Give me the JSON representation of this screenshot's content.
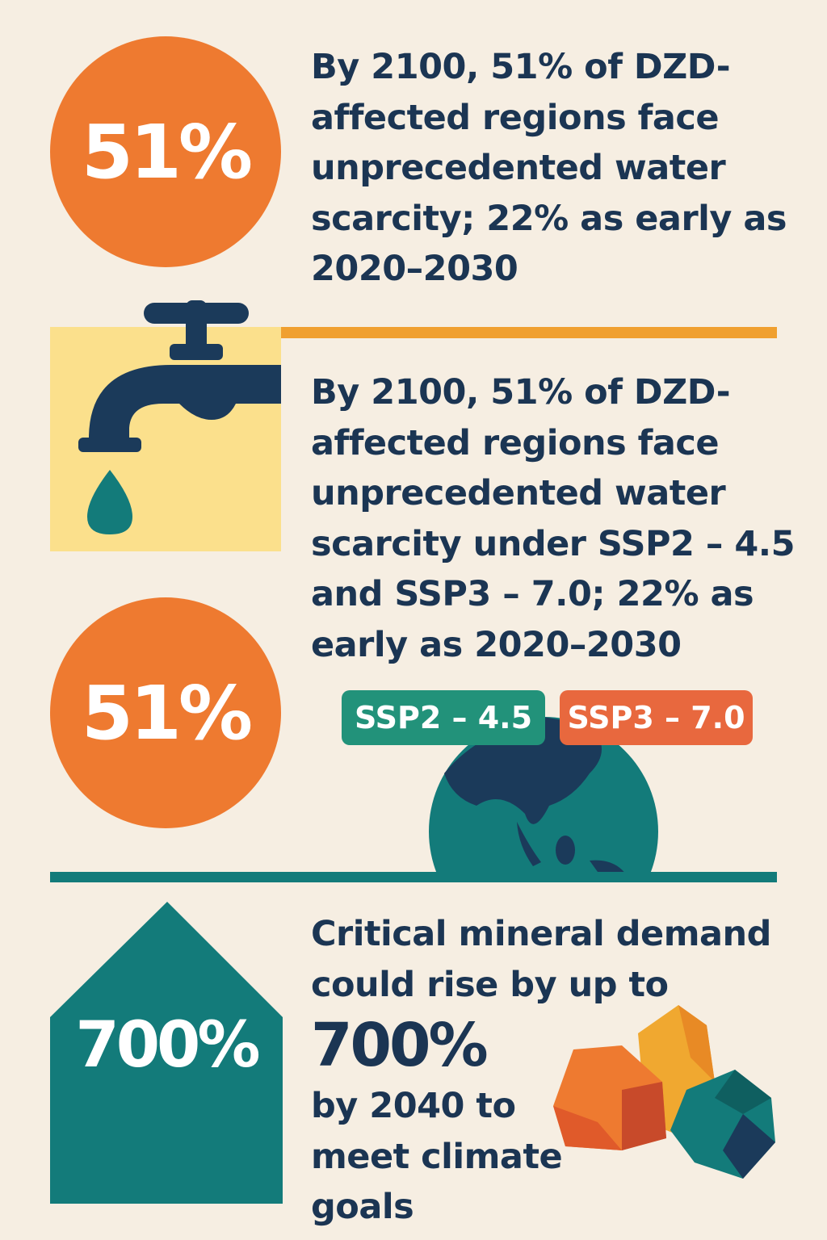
{
  "section1": {
    "stat": "51%",
    "lines": [
      "By 2100, 51% of DZD-",
      "affected regions face",
      "unprecedented water",
      "scarcity; 22% as early as",
      "2020–2030"
    ]
  },
  "section2": {
    "stat": "51%",
    "lines": [
      "By 2100, 51% of DZD-",
      "affected regions face",
      "unprecedented water",
      "scarcity under SSP2 – 4.5",
      "and SSP3 – 7.0; 22% as",
      "early as 2020–2030"
    ],
    "badges": [
      "SSP2 – 4.5",
      "SSP3 – 7.0"
    ]
  },
  "section3": {
    "stat": "700%",
    "lines_top": [
      "Critical mineral demand",
      "could rise by up to"
    ],
    "highlight": "700%",
    "lines_bottom": [
      "by 2040 to",
      "meet climate",
      "goals"
    ]
  },
  "colors": {
    "background": "#f6eee2",
    "orange": "#ee7a30",
    "navy": "#1b3553",
    "teal": "#137b7a",
    "green": "#22927a",
    "yellow": "#fbe08c"
  }
}
